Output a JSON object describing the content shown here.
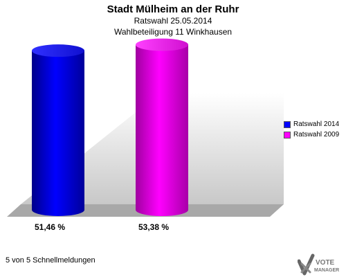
{
  "header": {
    "title": "Stadt Mülheim an der Ruhr",
    "subtitle1": "Ratswahl 25.05.2014",
    "subtitle2": "Wahlbeteiligung 11 Winkhausen"
  },
  "chart_data": {
    "type": "bar",
    "categories": [
      "Ratswahl 2014",
      "Ratswahl 2009"
    ],
    "values": [
      51.46,
      53.38
    ],
    "value_labels": [
      "51,46 %",
      "53,38 %"
    ],
    "colors": [
      "#0000ff",
      "#ff00ff"
    ],
    "ylim": [
      0,
      60
    ],
    "legend_position": "right",
    "grid": false
  },
  "legend": {
    "items": [
      {
        "label": "Ratswahl 2014",
        "color": "#0000ff"
      },
      {
        "label": "Ratswahl 2009",
        "color": "#ff00ff"
      }
    ]
  },
  "footer": {
    "text": "5 von 5 Schnellmeldungen"
  },
  "logo": {
    "line1": "VOTE",
    "line2": "MANAGER",
    "icon": "check-cross-icon"
  }
}
